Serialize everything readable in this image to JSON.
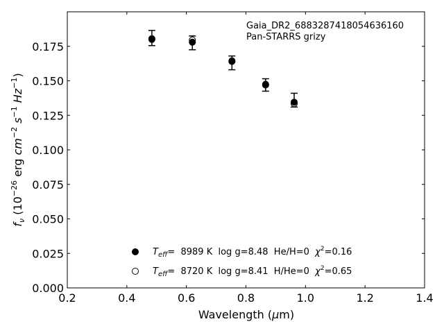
{
  "chart_data": {
    "type": "scatter",
    "annotations": [
      "Gaia_DR2_6883287418054636160",
      "Pan-STARRS grizy"
    ],
    "xlabel": {
      "pre": "Wavelength (",
      "sym": "μ",
      "post": "m)"
    },
    "ylabel": {
      "f": "f",
      "nu": "ν",
      "open": " (10",
      "e1": "−26",
      "erg": " erg ",
      "cm": "cm",
      "e2": "−2",
      "s": " s",
      "e3": "−1",
      "hz": " Hz",
      "e4": "−1",
      "close": ")"
    },
    "xlim": [
      0.2,
      1.4
    ],
    "ylim": [
      0.0,
      0.2
    ],
    "xticks": [
      "0.2",
      "0.4",
      "0.6",
      "0.8",
      "1.0",
      "1.2",
      "1.4"
    ],
    "yticks": [
      "0.000",
      "0.025",
      "0.050",
      "0.075",
      "0.100",
      "0.125",
      "0.150",
      "0.175"
    ],
    "observed": {
      "x": [
        0.484,
        0.62,
        0.753,
        0.866,
        0.962
      ],
      "y": [
        0.181,
        0.1775,
        0.163,
        0.147,
        0.136
      ],
      "err": [
        0.0055,
        0.005,
        0.005,
        0.0045,
        0.005
      ]
    },
    "series": [
      {
        "marker": "filled",
        "x": [
          0.484,
          0.62,
          0.753,
          0.866,
          0.962
        ],
        "y": [
          0.18,
          0.178,
          0.164,
          0.1475,
          0.1345
        ],
        "legend": {
          "t": "T",
          "sub": "eff",
          "eq": "=  8989 K  log g=8.48  He/H=0  ",
          "chi": "χ",
          "sup": "2",
          "val": "=0.16"
        }
      },
      {
        "marker": "open",
        "x": [
          0.484,
          0.62,
          0.753,
          0.866,
          0.962
        ],
        "y": [
          0.1805,
          0.1795,
          0.1645,
          0.147,
          0.1335
        ],
        "legend": {
          "t": "T",
          "sub": "eff",
          "eq": "=  8720 K  log g=8.41  H/He=0  ",
          "chi": "χ",
          "sup": "2",
          "val": "=0.65"
        }
      }
    ]
  }
}
